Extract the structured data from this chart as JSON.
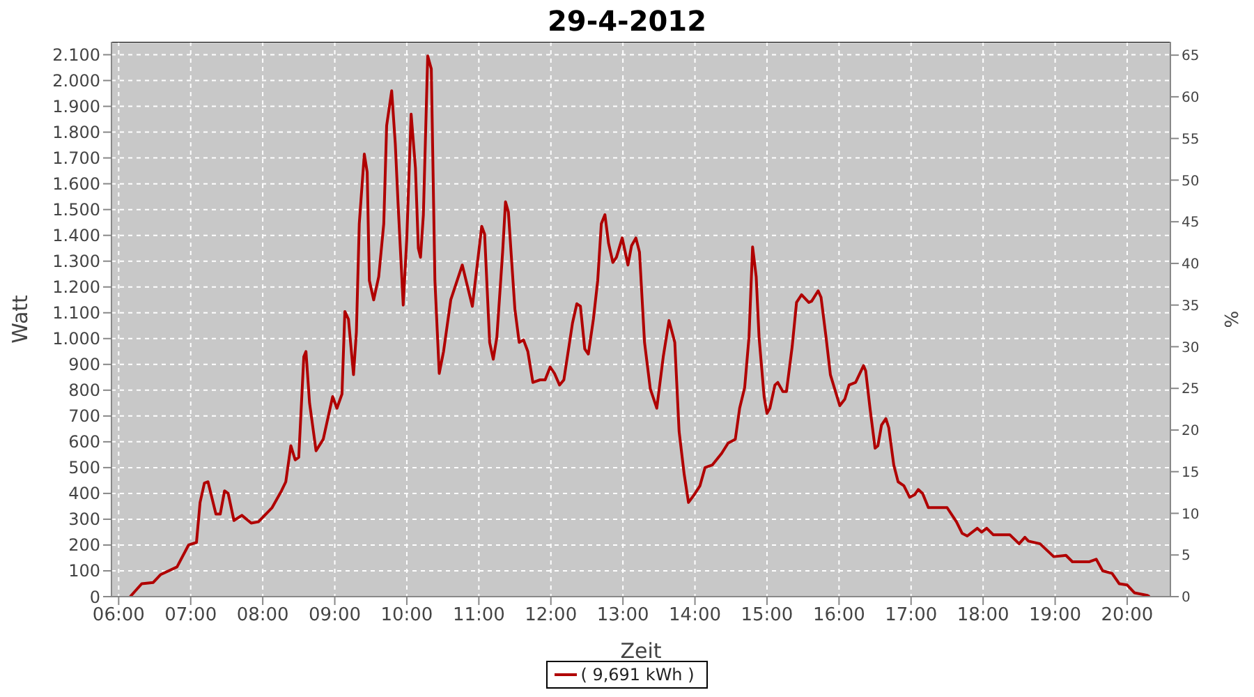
{
  "chart_data": {
    "type": "line",
    "title": "29-4-2012",
    "xlabel": "Zeit",
    "ylabel": "Watt",
    "y2label": "%",
    "x": [
      6.16,
      6.32,
      6.48,
      6.58,
      6.81,
      6.97,
      7.08,
      7.13,
      7.19,
      7.24,
      7.35,
      7.41,
      7.47,
      7.52,
      7.6,
      7.71,
      7.84,
      7.94,
      8.13,
      8.26,
      8.32,
      8.39,
      8.45,
      8.5,
      8.57,
      8.6,
      8.65,
      8.74,
      8.84,
      8.97,
      9.03,
      9.1,
      9.14,
      9.19,
      9.26,
      9.3,
      9.34,
      9.41,
      9.45,
      9.48,
      9.54,
      9.61,
      9.68,
      9.72,
      9.79,
      9.84,
      9.88,
      9.95,
      10.0,
      10.06,
      10.12,
      10.16,
      10.19,
      10.23,
      10.29,
      10.34,
      10.39,
      10.45,
      10.51,
      10.61,
      10.77,
      10.91,
      11.04,
      11.08,
      11.15,
      11.2,
      11.25,
      11.33,
      11.37,
      11.41,
      11.5,
      11.56,
      11.62,
      11.68,
      11.75,
      11.85,
      11.92,
      11.99,
      12.05,
      12.12,
      12.18,
      12.3,
      12.36,
      12.41,
      12.47,
      12.52,
      12.59,
      12.65,
      12.7,
      12.75,
      12.8,
      12.86,
      12.91,
      12.99,
      13.07,
      13.12,
      13.18,
      13.23,
      13.3,
      13.38,
      13.47,
      13.56,
      13.64,
      13.72,
      13.78,
      13.85,
      13.91,
      13.99,
      14.07,
      14.14,
      14.24,
      14.37,
      14.46,
      14.56,
      14.62,
      14.69,
      14.75,
      14.8,
      14.85,
      14.89,
      14.96,
      15.0,
      15.04,
      15.11,
      15.15,
      15.22,
      15.27,
      15.35,
      15.41,
      15.48,
      15.58,
      15.62,
      15.71,
      15.75,
      15.82,
      15.88,
      16.01,
      16.08,
      16.14,
      16.23,
      16.34,
      16.37,
      16.43,
      16.5,
      16.54,
      16.59,
      16.65,
      16.69,
      16.76,
      16.82,
      16.9,
      16.98,
      17.05,
      17.1,
      17.16,
      17.24,
      17.5,
      17.63,
      17.71,
      17.78,
      17.92,
      17.98,
      18.05,
      18.14,
      18.37,
      18.5,
      18.58,
      18.63,
      18.79,
      18.98,
      19.15,
      19.24,
      19.47,
      19.57,
      19.66,
      19.79,
      19.89,
      20.0,
      20.1,
      20.28,
      20.31
    ],
    "series": [
      {
        "name": "( 9,691 kWh )",
        "color": "#b00000",
        "values": [
          0,
          50,
          55,
          85,
          115,
          200,
          210,
          365,
          440,
          445,
          320,
          320,
          410,
          400,
          295,
          315,
          285,
          290,
          345,
          410,
          445,
          585,
          530,
          540,
          930,
          950,
          750,
          565,
          610,
          775,
          730,
          785,
          1105,
          1075,
          860,
          1025,
          1445,
          1715,
          1645,
          1225,
          1150,
          1240,
          1445,
          1825,
          1960,
          1755,
          1515,
          1130,
          1390,
          1870,
          1660,
          1350,
          1315,
          1480,
          2095,
          2045,
          1225,
          865,
          950,
          1150,
          1285,
          1125,
          1435,
          1405,
          985,
          920,
          1005,
          1335,
          1530,
          1490,
          1115,
          985,
          995,
          950,
          830,
          840,
          840,
          890,
          865,
          820,
          840,
          1060,
          1135,
          1125,
          960,
          940,
          1075,
          1225,
          1445,
          1480,
          1370,
          1295,
          1315,
          1390,
          1285,
          1360,
          1390,
          1335,
          985,
          805,
          730,
          930,
          1070,
          985,
          640,
          475,
          365,
          395,
          430,
          500,
          510,
          555,
          595,
          610,
          730,
          810,
          1005,
          1355,
          1240,
          1005,
          775,
          710,
          730,
          820,
          830,
          795,
          795,
          970,
          1140,
          1170,
          1140,
          1145,
          1185,
          1160,
          1005,
          860,
          740,
          765,
          820,
          830,
          895,
          875,
          730,
          575,
          585,
          665,
          690,
          655,
          510,
          445,
          430,
          385,
          395,
          415,
          400,
          345,
          345,
          290,
          245,
          235,
          265,
          250,
          265,
          240,
          240,
          205,
          230,
          215,
          205,
          155,
          160,
          135,
          135,
          145,
          100,
          90,
          50,
          45,
          15,
          5,
          0
        ]
      }
    ],
    "xlim": [
      5.9,
      20.6
    ],
    "xticks": [
      {
        "value": 6,
        "label": "06:00"
      },
      {
        "value": 7,
        "label": "07:00"
      },
      {
        "value": 8,
        "label": "08:00"
      },
      {
        "value": 9,
        "label": "09:00"
      },
      {
        "value": 10,
        "label": "10:00"
      },
      {
        "value": 11,
        "label": "11:00"
      },
      {
        "value": 12,
        "label": "12:00"
      },
      {
        "value": 13,
        "label": "13:00"
      },
      {
        "value": 14,
        "label": "14:00"
      },
      {
        "value": 15,
        "label": "15:00"
      },
      {
        "value": 16,
        "label": "16:00"
      },
      {
        "value": 17,
        "label": "17:00"
      },
      {
        "value": 18,
        "label": "18:00"
      },
      {
        "value": 19,
        "label": "19:00"
      },
      {
        "value": 20,
        "label": "20:00"
      }
    ],
    "ylim": [
      0,
      2150
    ],
    "yticks": [
      0,
      100,
      200,
      300,
      400,
      500,
      600,
      700,
      800,
      900,
      {
        "value": 1000,
        "label": "1.000"
      },
      {
        "value": 1100,
        "label": "1.100"
      },
      {
        "value": 1200,
        "label": "1.200"
      },
      {
        "value": 1300,
        "label": "1.300"
      },
      {
        "value": 1400,
        "label": "1.400"
      },
      {
        "value": 1500,
        "label": "1.500"
      },
      {
        "value": 1600,
        "label": "1.600"
      },
      {
        "value": 1700,
        "label": "1.700"
      },
      {
        "value": 1800,
        "label": "1.800"
      },
      {
        "value": 1900,
        "label": "1.900"
      },
      {
        "value": 2000,
        "label": "2.000"
      },
      {
        "value": 2100,
        "label": "2.100"
      }
    ],
    "y2lim": [
      0,
      66.6
    ],
    "y2ticks": [
      0,
      5,
      10,
      15,
      20,
      25,
      30,
      35,
      40,
      45,
      50,
      55,
      60,
      65
    ],
    "grid": true,
    "legend": "bottom",
    "marker": "none",
    "line_style": "solid"
  }
}
